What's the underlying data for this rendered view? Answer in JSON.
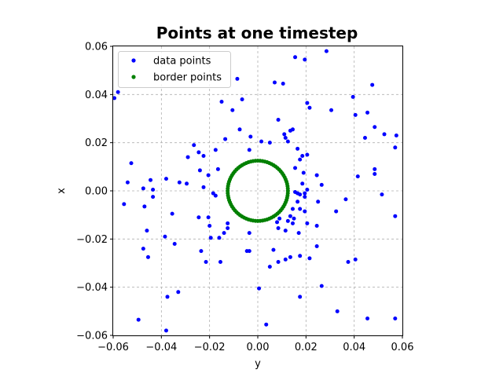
{
  "chart_data": {
    "type": "scatter",
    "title": "Points at one timestep",
    "xlabel": "y",
    "ylabel": "x",
    "xlim": [
      -0.06,
      0.06
    ],
    "ylim": [
      -0.06,
      0.06
    ],
    "xticks": [
      -0.06,
      -0.04,
      -0.02,
      0.0,
      0.02,
      0.04,
      0.06
    ],
    "xtick_labels": [
      "−0.06",
      "−0.04",
      "−0.02",
      "0.00",
      "0.02",
      "0.04",
      "0.06"
    ],
    "yticks": [
      -0.06,
      -0.04,
      -0.02,
      0.0,
      0.02,
      0.04,
      0.06
    ],
    "ytick_labels": [
      "−0.06",
      "−0.04",
      "−0.02",
      "0.00",
      "0.02",
      "0.04",
      "0.06"
    ],
    "grid": true,
    "legend_position": "top-left",
    "series": [
      {
        "name": "data points",
        "color": "#0000ff",
        "points": [
          [
            -0.0595,
            0.0385
          ],
          [
            -0.058,
            0.041
          ],
          [
            -0.0525,
            0.0115
          ],
          [
            -0.054,
            0.0035
          ],
          [
            -0.0555,
            -0.0055
          ],
          [
            -0.0475,
            0.001
          ],
          [
            -0.0445,
            0.0045
          ],
          [
            -0.0435,
            0.0005
          ],
          [
            -0.0435,
            -0.0025
          ],
          [
            -0.047,
            -0.0065
          ],
          [
            -0.046,
            -0.0165
          ],
          [
            -0.0475,
            -0.024
          ],
          [
            -0.0455,
            -0.0275
          ],
          [
            -0.0495,
            -0.0535
          ],
          [
            -0.038,
            -0.058
          ],
          [
            -0.0375,
            -0.044
          ],
          [
            -0.033,
            -0.042
          ],
          [
            -0.0385,
            -0.019
          ],
          [
            -0.0345,
            -0.022
          ],
          [
            -0.0355,
            -0.0095
          ],
          [
            -0.038,
            0.005
          ],
          [
            -0.0325,
            0.0035
          ],
          [
            -0.0295,
            0.003
          ],
          [
            -0.029,
            0.014
          ],
          [
            -0.0265,
            0.019
          ],
          [
            -0.0245,
            0.016
          ],
          [
            -0.0225,
            0.0145
          ],
          [
            -0.024,
            0.0085
          ],
          [
            -0.0225,
            0.0015
          ],
          [
            -0.0185,
            -0.001
          ],
          [
            -0.0205,
            0.0065
          ],
          [
            -0.0245,
            -0.011
          ],
          [
            -0.0205,
            -0.011
          ],
          [
            -0.02,
            -0.0145
          ],
          [
            -0.0195,
            -0.0195
          ],
          [
            -0.016,
            -0.0195
          ],
          [
            -0.014,
            -0.0175
          ],
          [
            -0.0125,
            -0.0135
          ],
          [
            -0.0125,
            -0.0155
          ],
          [
            -0.0235,
            -0.025
          ],
          [
            -0.0215,
            -0.0295
          ],
          [
            -0.0155,
            -0.0295
          ],
          [
            -0.0175,
            -0.002
          ],
          [
            -0.0165,
            0.009
          ],
          [
            -0.0135,
            0.0215
          ],
          [
            -0.0175,
            0.017
          ],
          [
            -0.015,
            0.037
          ],
          [
            -0.0105,
            0.0335
          ],
          [
            -0.0085,
            0.0465
          ],
          [
            -0.0065,
            0.038
          ],
          [
            -0.0075,
            0.0255
          ],
          [
            -0.0035,
            0.017
          ],
          [
            -0.003,
            0.0225
          ],
          [
            0.0015,
            0.0205
          ],
          [
            0.005,
            0.02
          ],
          [
            0.007,
            0.045
          ],
          [
            0.0105,
            0.0445
          ],
          [
            0.0085,
            0.0295
          ],
          [
            0.011,
            0.0235
          ],
          [
            0.0115,
            0.022
          ],
          [
            0.0125,
            0.0205
          ],
          [
            0.0135,
            0.025
          ],
          [
            0.0145,
            0.0255
          ],
          [
            0.0155,
            0.0555
          ],
          [
            0.0195,
            0.0545
          ],
          [
            0.0205,
            0.0365
          ],
          [
            0.0215,
            0.0345
          ],
          [
            0.0285,
            0.058
          ],
          [
            0.0305,
            0.0335
          ],
          [
            0.0165,
            0.0175
          ],
          [
            0.0175,
            0.013
          ],
          [
            0.0185,
            0.0145
          ],
          [
            0.0205,
            0.015
          ],
          [
            0.0155,
            0.0095
          ],
          [
            0.019,
            0.0075
          ],
          [
            0.0185,
            0.003
          ],
          [
            0.0155,
            -0.0005
          ],
          [
            0.0165,
            -0.001
          ],
          [
            0.0175,
            -0.0015
          ],
          [
            0.0195,
            -0.001
          ],
          [
            0.0205,
            0.0005
          ],
          [
            0.0195,
            -0.0025
          ],
          [
            0.0165,
            -0.0045
          ],
          [
            0.0145,
            -0.0075
          ],
          [
            0.0175,
            -0.0075
          ],
          [
            0.0195,
            -0.0085
          ],
          [
            0.0135,
            -0.0105
          ],
          [
            0.015,
            -0.0115
          ],
          [
            0.0125,
            -0.0125
          ],
          [
            0.009,
            -0.0115
          ],
          [
            0.008,
            -0.013
          ],
          [
            0.0085,
            -0.0155
          ],
          [
            0.0115,
            -0.0165
          ],
          [
            0.0145,
            -0.0135
          ],
          [
            0.017,
            -0.0175
          ],
          [
            0.0205,
            -0.0135
          ],
          [
            0.0245,
            -0.0145
          ],
          [
            0.025,
            -0.0045
          ],
          [
            0.0245,
            0.0065
          ],
          [
            0.0265,
            0.0025
          ],
          [
            0.0245,
            -0.023
          ],
          [
            0.0215,
            -0.028
          ],
          [
            0.0175,
            -0.027
          ],
          [
            0.0135,
            -0.0275
          ],
          [
            0.0115,
            -0.0285
          ],
          [
            0.0085,
            -0.0295
          ],
          [
            0.0065,
            -0.0245
          ],
          [
            0.005,
            -0.0315
          ],
          [
            0.0035,
            -0.0555
          ],
          [
            0.0005,
            -0.0405
          ],
          [
            -0.0035,
            -0.025
          ],
          [
            -0.0045,
            -0.025
          ],
          [
            -0.0035,
            -0.0175
          ],
          [
            0.0175,
            -0.044
          ],
          [
            0.0265,
            -0.0395
          ],
          [
            0.033,
            -0.05
          ],
          [
            0.0375,
            -0.0295
          ],
          [
            0.0405,
            -0.0285
          ],
          [
            0.0325,
            -0.0085
          ],
          [
            0.0365,
            -0.0035
          ],
          [
            0.0415,
            0.006
          ],
          [
            0.0455,
            0.0325
          ],
          [
            0.0405,
            0.0315
          ],
          [
            0.0395,
            0.039
          ],
          [
            0.0475,
            0.044
          ],
          [
            0.0485,
            0.0265
          ],
          [
            0.0525,
            0.0235
          ],
          [
            0.0445,
            0.022
          ],
          [
            0.0485,
            0.009
          ],
          [
            0.0485,
            0.007
          ],
          [
            0.0515,
            -0.0015
          ],
          [
            0.0575,
            0.023
          ],
          [
            0.057,
            0.018
          ],
          [
            0.057,
            -0.0105
          ],
          [
            0.0455,
            -0.053
          ],
          [
            0.057,
            -0.053
          ]
        ]
      },
      {
        "name": "border points",
        "color": "#008000",
        "circle": {
          "center": [
            0.0,
            0.0
          ],
          "radius": 0.0125,
          "count": 80
        }
      }
    ]
  }
}
